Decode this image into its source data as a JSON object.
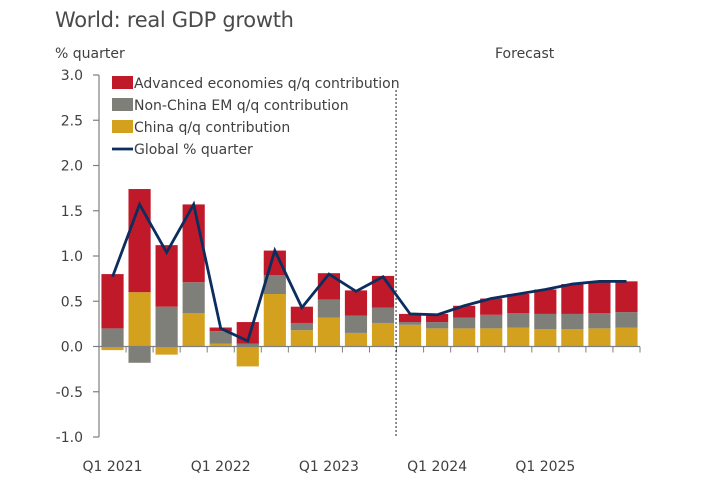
{
  "chart_data": {
    "type": "bar",
    "subtype": "stacked-bar-with-line",
    "title": "World: real GDP growth",
    "ylabel": "% quarter",
    "xlabel": "",
    "annotation": "Forecast",
    "forecast_start_after": "Q3 2023",
    "ylim": [
      -1.0,
      3.0
    ],
    "yticks": [
      "3.0",
      "2.5",
      "2.0",
      "1.5",
      "1.0",
      "0.5",
      "0.0",
      "-0.5",
      "-1.0"
    ],
    "ytick_values": [
      3.0,
      2.5,
      2.0,
      1.5,
      1.0,
      0.5,
      0.0,
      -0.5,
      -1.0
    ],
    "xtick_labels": [
      {
        "label": "Q1 2021",
        "index": 0
      },
      {
        "label": "Q1 2022",
        "index": 4
      },
      {
        "label": "Q1 2023",
        "index": 8
      },
      {
        "label": "Q1 2024",
        "index": 12
      },
      {
        "label": "Q1 2025",
        "index": 16
      }
    ],
    "categories": [
      "Q1 2021",
      "Q2 2021",
      "Q3 2021",
      "Q4 2021",
      "Q1 2022",
      "Q2 2022",
      "Q3 2022",
      "Q4 2022",
      "Q1 2023",
      "Q2 2023",
      "Q3 2023",
      "Q4 2023",
      "Q1 2024",
      "Q2 2024",
      "Q3 2024",
      "Q4 2024",
      "Q1 2025",
      "Q2 2025",
      "Q3 2025",
      "Q4 2025"
    ],
    "grid": false,
    "legend_position": "top-left",
    "series": [
      {
        "name": "China q/q contribution",
        "kind": "bar",
        "color": "#D4A11E",
        "values": [
          -0.04,
          0.6,
          -0.09,
          0.37,
          0.03,
          -0.22,
          0.58,
          0.18,
          0.32,
          0.15,
          0.26,
          0.24,
          0.2,
          0.2,
          0.2,
          0.21,
          0.19,
          0.19,
          0.2,
          0.21
        ]
      },
      {
        "name": "Non-China EM q/q contribution",
        "kind": "bar",
        "color": "#7F7F7A",
        "values": [
          0.2,
          -0.18,
          0.44,
          0.34,
          0.14,
          0.03,
          0.21,
          0.08,
          0.2,
          0.19,
          0.17,
          0.03,
          0.07,
          0.12,
          0.15,
          0.16,
          0.17,
          0.17,
          0.17,
          0.17
        ]
      },
      {
        "name": "Advanced economies q/q contribution",
        "kind": "bar",
        "color": "#C0192A",
        "values": [
          0.6,
          1.14,
          0.68,
          0.86,
          0.04,
          0.24,
          0.27,
          0.18,
          0.29,
          0.28,
          0.35,
          0.09,
          0.09,
          0.13,
          0.18,
          0.21,
          0.27,
          0.33,
          0.35,
          0.34
        ]
      },
      {
        "name": "Global % quarter",
        "kind": "line",
        "color": "#0B2E5E",
        "values": [
          0.77,
          1.57,
          1.04,
          1.57,
          0.2,
          0.06,
          1.06,
          0.43,
          0.8,
          0.61,
          0.77,
          0.36,
          0.35,
          0.45,
          0.53,
          0.58,
          0.63,
          0.69,
          0.72,
          0.72
        ]
      }
    ],
    "legend": [
      {
        "label": "Advanced economies q/q contribution",
        "color": "#C0192A",
        "marker": "box"
      },
      {
        "label": "Non-China EM q/q contribution",
        "color": "#7F7F7A",
        "marker": "box"
      },
      {
        "label": "China q/q contribution",
        "color": "#D4A11E",
        "marker": "box"
      },
      {
        "label": "Global % quarter",
        "color": "#0B2E5E",
        "marker": "line"
      }
    ]
  }
}
